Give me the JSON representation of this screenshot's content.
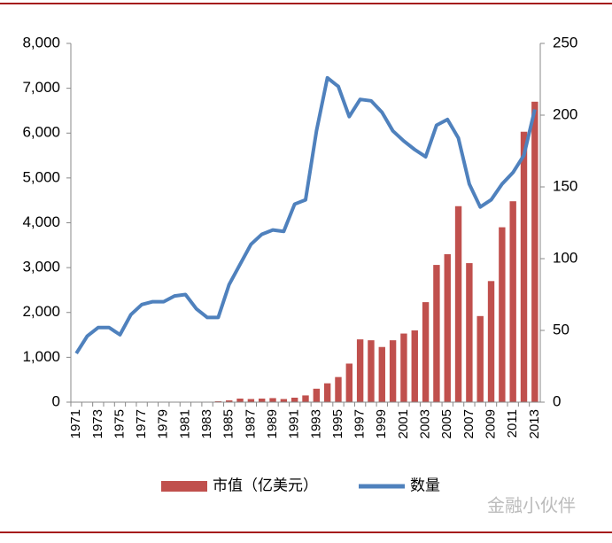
{
  "chart_data": {
    "type": "bar_line",
    "categories": [
      "1971",
      null,
      "1973",
      null,
      "1975",
      null,
      "1977",
      null,
      "1979",
      null,
      "1981",
      null,
      "1983",
      null,
      "1985",
      null,
      "1987",
      null,
      "1989",
      null,
      "1991",
      null,
      "1993",
      null,
      "1995",
      null,
      "1997",
      null,
      "1999",
      null,
      "2001",
      null,
      "2003",
      null,
      "2005",
      null,
      "2007",
      null,
      "2009",
      null,
      "2011",
      null,
      "2013"
    ],
    "series": [
      {
        "name": "市值（亿美元）",
        "color": "#c0504d",
        "type": "bar",
        "values": [
          0,
          0,
          0,
          0,
          0,
          0,
          0,
          0,
          0,
          0,
          0,
          0,
          10,
          20,
          40,
          80,
          70,
          80,
          90,
          70,
          100,
          150,
          300,
          420,
          560,
          860,
          1400,
          1380,
          1230,
          1380,
          1530,
          1600,
          2230,
          3060,
          3300,
          4370,
          3100,
          1920,
          2700,
          3900,
          4480,
          6030,
          6700
        ]
      },
      {
        "name": "数量",
        "color": "#4f81bd",
        "type": "line",
        "axis": "y2",
        "values": [
          34,
          46,
          52,
          52,
          47,
          61,
          68,
          70,
          70,
          74,
          75,
          65,
          59,
          59,
          82,
          96,
          110,
          117,
          120,
          119,
          138,
          141,
          189,
          226,
          220,
          199,
          211,
          210,
          202,
          189,
          182,
          176,
          171,
          193,
          197,
          184,
          152,
          136,
          141,
          152,
          160,
          172,
          204
        ]
      }
    ],
    "ylim": [
      0,
      8000
    ],
    "yticks": [
      0,
      {
        "value": 1000,
        "label": "1,000"
      },
      {
        "value": 2000,
        "label": "2,000"
      },
      {
        "value": 3000,
        "label": "3,000"
      },
      {
        "value": 4000,
        "label": "4,000"
      },
      {
        "value": 5000,
        "label": "5,000"
      },
      {
        "value": 6000,
        "label": "6,000"
      },
      {
        "value": 7000,
        "label": "7,000"
      },
      {
        "value": 8000,
        "label": "8,000"
      }
    ],
    "y2lim": [
      0,
      250
    ],
    "y2ticks": [
      0,
      50,
      100,
      150,
      200,
      250
    ],
    "watermark": "金融小伙伴"
  }
}
